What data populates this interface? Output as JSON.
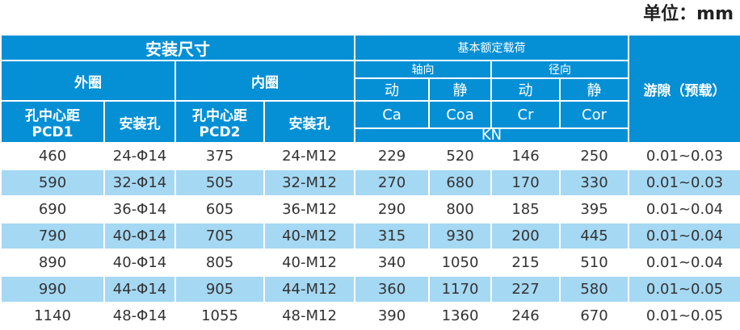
{
  "unit_label": "单位：mm",
  "header": {
    "install_dims": "安装尺寸",
    "outer_ring": "外圈",
    "inner_ring": "内圈",
    "pcd1": [
      "孔中心距",
      "PCD1"
    ],
    "pcd2": [
      "孔中心距",
      "PCD2"
    ],
    "mount_hole": "安装孔",
    "basic_load": "基本额定载荷",
    "axial": "轴向",
    "radial": "径向",
    "dynamic": "动",
    "static": "静",
    "ca": "Ca",
    "coa": "Coa",
    "cr": "Cr",
    "cor": "Cor",
    "kn": "KN",
    "clearance": "游隙（预载）"
  },
  "rows": [
    [
      "460",
      "24-Φ14",
      "375",
      "24-M12",
      "229",
      "520",
      "146",
      "250",
      "0.01~0.03"
    ],
    [
      "590",
      "32-Φ14",
      "505",
      "32-M12",
      "270",
      "680",
      "170",
      "330",
      "0.01~0.03"
    ],
    [
      "690",
      "36-Φ14",
      "605",
      "36-M12",
      "290",
      "800",
      "185",
      "395",
      "0.01~0.04"
    ],
    [
      "790",
      "40-Φ14",
      "705",
      "40-M12",
      "315",
      "930",
      "200",
      "445",
      "0.01~0.04"
    ],
    [
      "890",
      "40-Φ14",
      "805",
      "40-M12",
      "340",
      "1050",
      "215",
      "510",
      "0.01~0.04"
    ],
    [
      "990",
      "44-Φ14",
      "905",
      "44-M12",
      "360",
      "1170",
      "227",
      "580",
      "0.01~0.05"
    ],
    [
      "1140",
      "48-Φ14",
      "1055",
      "48-M12",
      "390",
      "1360",
      "246",
      "670",
      "0.01~0.05"
    ]
  ],
  "colors": {
    "header_bg": "#0590d6",
    "alt_row_bg": "#a5d8f3",
    "text": "#333333"
  }
}
